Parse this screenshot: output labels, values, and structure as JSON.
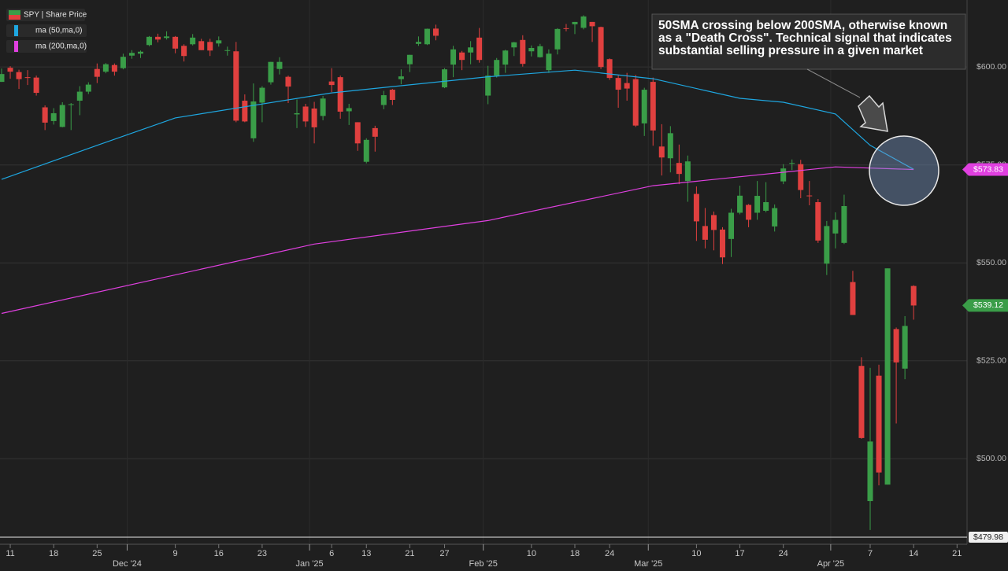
{
  "chart_data": {
    "type": "candlestick",
    "categories": [
      "2024-11-08",
      "2024-11-11",
      "2024-11-12",
      "2024-11-13",
      "2024-11-14",
      "2024-11-15",
      "2024-11-18",
      "2024-11-19",
      "2024-11-20",
      "2024-11-21",
      "2024-11-22",
      "2024-11-25",
      "2024-11-26",
      "2024-11-27",
      "2024-11-29",
      "2024-12-02",
      "2024-12-03",
      "2024-12-04",
      "2024-12-05",
      "2024-12-06",
      "2024-12-09",
      "2024-12-10",
      "2024-12-11",
      "2024-12-12",
      "2024-12-13",
      "2024-12-16",
      "2024-12-17",
      "2024-12-18",
      "2024-12-19",
      "2024-12-20",
      "2024-12-23",
      "2024-12-24",
      "2024-12-26",
      "2024-12-27",
      "2024-12-30",
      "2024-12-31",
      "2025-01-02",
      "2025-01-03",
      "2025-01-06",
      "2025-01-07",
      "2025-01-08",
      "2025-01-10",
      "2025-01-13",
      "2025-01-14",
      "2025-01-15",
      "2025-01-16",
      "2025-01-17",
      "2025-01-21",
      "2025-01-22",
      "2025-01-23",
      "2025-01-24",
      "2025-01-27",
      "2025-01-28",
      "2025-01-29",
      "2025-01-30",
      "2025-01-31",
      "2025-02-03",
      "2025-02-04",
      "2025-02-05",
      "2025-02-06",
      "2025-02-07",
      "2025-02-10",
      "2025-02-11",
      "2025-02-12",
      "2025-02-13",
      "2025-02-14",
      "2025-02-18",
      "2025-02-19",
      "2025-02-20",
      "2025-02-21",
      "2025-02-24",
      "2025-02-25",
      "2025-02-26",
      "2025-02-27",
      "2025-02-28",
      "2025-03-03",
      "2025-03-04",
      "2025-03-05",
      "2025-03-06",
      "2025-03-07",
      "2025-03-10",
      "2025-03-11",
      "2025-03-12",
      "2025-03-13",
      "2025-03-14",
      "2025-03-17",
      "2025-03-18",
      "2025-03-19",
      "2025-03-20",
      "2025-03-21",
      "2025-03-24",
      "2025-03-25",
      "2025-03-26",
      "2025-03-27",
      "2025-03-28",
      "2025-03-31",
      "2025-04-01",
      "2025-04-02",
      "2025-04-03",
      "2025-04-04",
      "2025-04-07",
      "2025-04-08",
      "2025-04-09",
      "2025-04-10",
      "2025-04-11",
      "2025-04-14",
      "2025-04-15",
      "2025-04-16",
      "2025-04-17",
      "2025-04-18",
      "2025-04-21"
    ],
    "series": [
      {
        "name": "SPY | Share Price",
        "type": "candlestick",
        "up_color": "#3a9d48",
        "down_color": "#e0403f",
        "last_label": "$539.12",
        "open": [
          596.2,
          599.8,
          598.7,
          597.4,
          597.3,
          589.7,
          586.2,
          584.7,
          590.4,
          591.4,
          593.7,
          599.5,
          598.8,
          600.5,
          599.7,
          602.9,
          603.4,
          605.6,
          607.7,
          607.4,
          607.7,
          605.4,
          605.8,
          606.6,
          606.4,
          606.0,
          604.2,
          604.0,
          591.4,
          581.8,
          590.9,
          596.1,
          599.5,
          597.5,
          587.9,
          589.9,
          589.4,
          587.5,
          596.3,
          597.4,
          588.7,
          585.9,
          575.8,
          584.4,
          590.3,
          594.2,
          596.9,
          600.7,
          605.9,
          605.8,
          609.8,
          594.8,
          600.6,
          603.7,
          603.7,
          607.5,
          592.7,
          597.8,
          600.6,
          605.0,
          606.9,
          604.0,
          602.5,
          599.2,
          604.5,
          609.9,
          610.9,
          610.0,
          611.5,
          610.2,
          602.0,
          597.2,
          595.9,
          596.9,
          585.6,
          596.2,
          579.7,
          576.7,
          575.5,
          570.9,
          567.6,
          559.4,
          562.2,
          558.5,
          556.1,
          562.8,
          564.8,
          562.8,
          563.3,
          559.3,
          570.8,
          575.3,
          575.2,
          567.2,
          565.5,
          549.8,
          557.5,
          555.1,
          545.1,
          523.7,
          489.2,
          521.2,
          493.4,
          533.1,
          523.0,
          544.1,
          null,
          null,
          null,
          null,
          null
        ],
        "high": [
          599.6,
          600.2,
          599.3,
          599.2,
          597.8,
          590.2,
          589.5,
          591.0,
          590.8,
          595.1,
          596.1,
          600.9,
          601.0,
          600.9,
          603.4,
          604.3,
          604.2,
          607.9,
          608.5,
          609.1,
          607.9,
          605.8,
          608.4,
          607.2,
          607.2,
          607.8,
          605.2,
          606.4,
          593.0,
          595.8,
          595.1,
          601.3,
          602.5,
          597.8,
          591.7,
          590.6,
          591.1,
          592.6,
          599.7,
          597.8,
          590.6,
          585.9,
          581.8,
          585.0,
          593.9,
          594.4,
          599.4,
          603.1,
          607.8,
          609.8,
          610.8,
          599.7,
          605.4,
          604.1,
          606.6,
          609.96,
          600.3,
          602.3,
          604.4,
          606.4,
          608.1,
          605.5,
          605.9,
          604.5,
          609.9,
          610.99,
          611.5,
          613.2,
          611.5,
          610.3,
          602.2,
          597.9,
          598.5,
          598.0,
          594.7,
          597.3,
          585.4,
          584.9,
          580.2,
          577.4,
          569.5,
          564.0,
          563.1,
          559.1,
          563.8,
          569.7,
          565.0,
          570.9,
          570.6,
          564.9,
          575.2,
          576.4,
          576.3,
          570.9,
          566.3,
          560.7,
          562.9,
          567.4,
          547.97,
          525.9,
          523.2,
          524.0,
          548.6,
          533.5,
          536.4,
          544.3,
          null,
          null,
          null,
          null,
          null
        ],
        "low": [
          596.2,
          597.0,
          594.4,
          595.4,
          592.7,
          583.9,
          585.3,
          584.6,
          583.9,
          587.7,
          593.1,
          595.9,
          598.4,
          597.8,
          599.4,
          602.1,
          602.3,
          605.3,
          606.3,
          607.0,
          603.5,
          601.4,
          605.5,
          604.3,
          602.8,
          605.2,
          602.9,
          585.9,
          585.9,
          580.9,
          585.9,
          595.5,
          598.1,
          590.8,
          584.4,
          584.7,
          580.5,
          586.4,
          593.6,
          586.8,
          585.2,
          578.6,
          575.4,
          578.4,
          589.2,
          590.3,
          595.6,
          598.7,
          605.4,
          605.6,
          606.8,
          594.6,
          597.4,
          599.2,
          600.7,
          601.1,
          590.5,
          597.3,
          598.5,
          602.8,
          600.1,
          602.7,
          602.4,
          598.5,
          603.2,
          609.1,
          608.4,
          609.6,
          606.4,
          599.5,
          596.7,
          589.6,
          591.4,
          584.7,
          582.4,
          579.9,
          572.3,
          573.1,
          570.1,
          565.6,
          555.6,
          553.7,
          553.2,
          549.7,
          551.5,
          562.4,
          559.1,
          561.0,
          562.9,
          558.0,
          570.1,
          573.7,
          566.5,
          564.7,
          555.1,
          546.9,
          553.7,
          554.8,
          536.7,
          505.1,
          481.8,
          493.2,
          493.4,
          509.0,
          520.3,
          535.5,
          null,
          null,
          null,
          null,
          null
        ],
        "close": [
          598.2,
          598.8,
          596.9,
          597.2,
          593.4,
          585.8,
          588.2,
          590.3,
          590.5,
          593.7,
          595.5,
          597.5,
          600.7,
          598.8,
          602.6,
          603.6,
          603.9,
          607.7,
          607.0,
          607.8,
          604.7,
          602.8,
          607.5,
          604.3,
          604.2,
          606.8,
          604.3,
          586.3,
          586.1,
          591.2,
          594.7,
          601.3,
          601.3,
          595.0,
          588.2,
          586.1,
          584.6,
          591.95,
          595.4,
          588.6,
          589.5,
          580.5,
          581.4,
          582.2,
          592.8,
          591.6,
          597.6,
          603.1,
          606.4,
          609.75,
          607.97,
          599.4,
          604.5,
          601.8,
          605.0,
          601.8,
          597.8,
          601.8,
          604.2,
          606.3,
          600.8,
          604.85,
          605.3,
          603.4,
          609.7,
          609.7,
          611.5,
          612.9,
          610.4,
          600.0,
          597.2,
          594.2,
          594.5,
          585.05,
          594.2,
          583.8,
          576.9,
          583.1,
          572.7,
          575.9,
          560.6,
          555.9,
          558.4,
          551.4,
          562.8,
          567.15,
          561.0,
          567.1,
          565.5,
          563.98,
          574.1,
          575.5,
          568.6,
          567.1,
          555.7,
          559.4,
          560.97,
          564.5,
          536.7,
          505.3,
          504.4,
          496.5,
          548.6,
          524.6,
          533.9,
          539.12,
          null,
          null,
          null,
          null,
          null
        ]
      },
      {
        "name": "ma (50,ma,0)",
        "type": "line",
        "color": "#1ea7e1",
        "x": [
          "2024-11-08",
          "2024-11-25",
          "2024-12-09",
          "2025-01-06",
          "2025-02-03",
          "2025-02-18",
          "2025-03-03",
          "2025-03-17",
          "2025-03-24",
          "2025-04-01",
          "2025-04-07",
          "2025-04-14"
        ],
        "values": [
          571.3,
          580.0,
          587.0,
          593.4,
          597.5,
          599.2,
          597.0,
          592.0,
          591.0,
          588.0,
          580.0,
          573.9
        ]
      },
      {
        "name": "ma (200,ma,0)",
        "type": "line",
        "color": "#e040e0",
        "last_label": "$573.83",
        "x": [
          "2024-11-08",
          "2025-01-02",
          "2025-02-03",
          "2025-03-03",
          "2025-04-01",
          "2025-04-14"
        ],
        "values": [
          537.1,
          554.8,
          560.8,
          569.7,
          574.5,
          573.83
        ]
      }
    ],
    "ylim": [
      479.98,
      617.1
    ],
    "yticks": [
      {
        "value": 479.98,
        "label": "$479.98"
      },
      {
        "value": 500,
        "label": "$500.00"
      },
      {
        "value": 525,
        "label": "$525.00"
      },
      {
        "value": 550,
        "label": "$550.00"
      },
      {
        "value": 575,
        "label": "$575.00"
      },
      {
        "value": 600,
        "label": "$600.00"
      }
    ],
    "xticks": [
      {
        "value": "2024-11-11",
        "label": "11"
      },
      {
        "value": "2024-11-18",
        "label": "18"
      },
      {
        "value": "2024-11-25",
        "label": "25"
      },
      {
        "value": "2024-12-09",
        "label": "9"
      },
      {
        "value": "2024-12-16",
        "label": "16"
      },
      {
        "value": "2024-12-23",
        "label": "23"
      },
      {
        "value": "2025-01-06",
        "label": "6"
      },
      {
        "value": "2025-01-13",
        "label": "13"
      },
      {
        "value": "2025-01-21",
        "label": "21"
      },
      {
        "value": "2025-01-27",
        "label": "27"
      },
      {
        "value": "2025-02-10",
        "label": "10"
      },
      {
        "value": "2025-02-18",
        "label": "18"
      },
      {
        "value": "2025-02-24",
        "label": "24"
      },
      {
        "value": "2025-03-10",
        "label": "10"
      },
      {
        "value": "2025-03-17",
        "label": "17"
      },
      {
        "value": "2025-03-24",
        "label": "24"
      },
      {
        "value": "2025-04-07",
        "label": "7"
      },
      {
        "value": "2025-04-14",
        "label": "14"
      },
      {
        "value": "2025-04-21",
        "label": "21"
      }
    ],
    "month_ticks": [
      {
        "value": "2024-12-02",
        "label": "Dec '24"
      },
      {
        "value": "2025-01-02",
        "label": "Jan '25"
      },
      {
        "value": "2025-02-03",
        "label": "Feb '25"
      },
      {
        "value": "2025-03-03",
        "label": "Mar '25"
      },
      {
        "value": "2025-04-01",
        "label": "Apr '25"
      }
    ],
    "grid": true,
    "annotation": [
      "50SMA crossing below 200SMA, otherwise known",
      "as a \"Death Cross\". Technical signal that indicates",
      "substantial selling pressure in a given market"
    ]
  }
}
